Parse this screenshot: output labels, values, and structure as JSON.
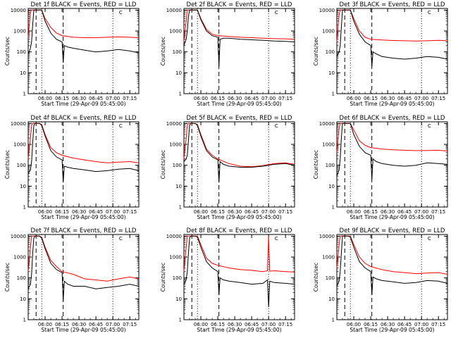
{
  "chart_data": {
    "type": "line",
    "panel_titles": [
      "Det 1f BLACK = Events, RED = LLD",
      "Det 2f BLACK = Events, RED = LLD",
      "Det 3f BLACK = Events, RED = LLD",
      "Det 4f BLACK = Events, RED = LLD",
      "Det 5f BLACK = Events, RED = LLD",
      "Det 6f BLACK = Events, RED = LLD",
      "Det 7f BLACK = Events, RED = LLD",
      "Det 8f BLACK = Events, RED = LLD",
      "Det 9f BLACK = Events, RED = LLD"
    ],
    "xlabel": "Start Time (29-Apr-09 05:45:00)",
    "ylabel": "Counts/sec",
    "x_tick_labels": [
      "06:00",
      "06:15",
      "06:30",
      "06:45",
      "07:00",
      "07:15"
    ],
    "x_tick_minutes": [
      15,
      30,
      45,
      60,
      75,
      90
    ],
    "xlim_minutes": [
      0,
      98
    ],
    "y_tick_labels": [
      "1",
      "10",
      "100",
      "1000",
      "10000"
    ],
    "y_tick_values": [
      1,
      10,
      100,
      1000,
      10000
    ],
    "ylim": [
      1,
      12000
    ],
    "yscale": "log",
    "series_colors": {
      "events": "#000000",
      "lld": "#ff0000"
    },
    "marker_label": "C",
    "dashed_markers_minutes": [
      7,
      31
    ],
    "dotted_markers_minutes": [
      12,
      75
    ],
    "panels": [
      {
        "lld": {
          "x": [
            0,
            2,
            3,
            4,
            5,
            6,
            7,
            8,
            10,
            12,
            15,
            20,
            25,
            30,
            40,
            50,
            60,
            70,
            80,
            90,
            98
          ],
          "y": [
            500,
            8000,
            10000,
            10000,
            10000,
            10000,
            10000,
            10000,
            10000,
            10000,
            4000,
            1500,
            800,
            600,
            500,
            480,
            480,
            500,
            520,
            500,
            480
          ]
        },
        "events": {
          "x": [
            0,
            2,
            3,
            4,
            5,
            6,
            7,
            8,
            10,
            12,
            15,
            20,
            25,
            30,
            31,
            32,
            35,
            40,
            50,
            60,
            70,
            80,
            90,
            98
          ],
          "y": [
            80,
            150,
            300,
            2000,
            10000,
            10000,
            10000,
            10000,
            10000,
            10000,
            3000,
            800,
            400,
            300,
            30,
            200,
            170,
            150,
            120,
            100,
            110,
            130,
            110,
            90
          ]
        }
      },
      {
        "lld": {
          "x": [
            0,
            2,
            3,
            4,
            5,
            6,
            7,
            8,
            10,
            12,
            15,
            20,
            25,
            30,
            40,
            50,
            60,
            70,
            80,
            90,
            98
          ],
          "y": [
            300,
            3000,
            10000,
            10000,
            10000,
            10000,
            10000,
            10000,
            10000,
            10000,
            4000,
            1200,
            700,
            600,
            550,
            500,
            480,
            450,
            430,
            420,
            400
          ]
        },
        "events": {
          "x": [
            0,
            2,
            3,
            4,
            5,
            6,
            7,
            8,
            10,
            12,
            15,
            20,
            25,
            30,
            31,
            32,
            35,
            40,
            50,
            60,
            70,
            80,
            90,
            98
          ],
          "y": [
            200,
            400,
            1000,
            5000,
            10000,
            10000,
            10000,
            10000,
            10000,
            10000,
            3500,
            1000,
            600,
            500,
            20,
            400,
            450,
            450,
            400,
            380,
            360,
            330,
            320,
            300
          ]
        }
      },
      {
        "lld": {
          "x": [
            0,
            2,
            3,
            4,
            5,
            6,
            7,
            8,
            10,
            12,
            15,
            20,
            25,
            30,
            40,
            50,
            60,
            70,
            80,
            90,
            98
          ],
          "y": [
            300,
            6000,
            10000,
            10000,
            10000,
            10000,
            10000,
            10000,
            10000,
            10000,
            4000,
            1000,
            500,
            400,
            370,
            350,
            340,
            330,
            340,
            360,
            340
          ]
        },
        "events": {
          "x": [
            0,
            2,
            3,
            4,
            5,
            6,
            7,
            8,
            10,
            12,
            15,
            20,
            25,
            30,
            31,
            32,
            35,
            40,
            50,
            60,
            70,
            80,
            90,
            98
          ],
          "y": [
            60,
            100,
            200,
            1500,
            10000,
            10000,
            10000,
            10000,
            10000,
            10000,
            3000,
            700,
            300,
            200,
            20,
            100,
            80,
            60,
            50,
            45,
            50,
            60,
            55,
            45
          ]
        }
      },
      {
        "lld": {
          "x": [
            0,
            2,
            3,
            4,
            5,
            6,
            7,
            8,
            10,
            12,
            15,
            20,
            25,
            30,
            40,
            50,
            60,
            70,
            80,
            90,
            98
          ],
          "y": [
            200,
            2000,
            8000,
            10000,
            10000,
            10000,
            10000,
            10000,
            10000,
            9000,
            3000,
            700,
            400,
            300,
            220,
            180,
            150,
            130,
            140,
            150,
            130
          ]
        },
        "events": {
          "x": [
            0,
            2,
            3,
            4,
            5,
            6,
            7,
            8,
            10,
            12,
            15,
            20,
            25,
            30,
            31,
            32,
            35,
            40,
            50,
            60,
            70,
            80,
            90,
            98
          ],
          "y": [
            40,
            60,
            150,
            1200,
            8000,
            10000,
            10000,
            10000,
            10000,
            8000,
            2500,
            500,
            250,
            180,
            15,
            90,
            80,
            70,
            60,
            50,
            55,
            65,
            70,
            55
          ]
        }
      },
      {
        "lld": {
          "x": [
            0,
            2,
            3,
            4,
            5,
            6,
            7,
            8,
            10,
            12,
            15,
            20,
            25,
            30,
            40,
            50,
            60,
            70,
            80,
            90,
            98
          ],
          "y": [
            200,
            2000,
            8000,
            10000,
            10000,
            10000,
            10000,
            10000,
            10000,
            9000,
            3000,
            600,
            300,
            200,
            120,
            90,
            85,
            95,
            120,
            130,
            110
          ]
        },
        "events": {
          "x": [
            0,
            2,
            3,
            4,
            5,
            6,
            7,
            8,
            10,
            12,
            15,
            20,
            25,
            30,
            31,
            32,
            35,
            40,
            50,
            60,
            70,
            80,
            90,
            98
          ],
          "y": [
            150,
            200,
            300,
            1500,
            8000,
            10000,
            10000,
            10000,
            10000,
            8000,
            2500,
            500,
            250,
            180,
            15,
            150,
            110,
            90,
            80,
            80,
            90,
            110,
            120,
            100
          ]
        }
      },
      {
        "lld": {
          "x": [
            0,
            2,
            3,
            4,
            5,
            6,
            7,
            8,
            10,
            12,
            15,
            20,
            25,
            30,
            40,
            50,
            60,
            70,
            80,
            90,
            98
          ],
          "y": [
            400,
            6000,
            10000,
            10000,
            10000,
            10000,
            10000,
            10000,
            10000,
            10000,
            5000,
            1500,
            900,
            700,
            600,
            550,
            520,
            500,
            510,
            520,
            480
          ]
        },
        "events": {
          "x": [
            0,
            2,
            3,
            4,
            5,
            6,
            7,
            8,
            10,
            12,
            15,
            20,
            25,
            30,
            31,
            32,
            35,
            40,
            50,
            60,
            70,
            80,
            90,
            98
          ],
          "y": [
            30,
            60,
            200,
            2000,
            10000,
            10000,
            10000,
            10000,
            10000,
            10000,
            3000,
            800,
            400,
            300,
            20,
            200,
            150,
            120,
            100,
            90,
            100,
            130,
            120,
            110
          ]
        }
      },
      {
        "lld": {
          "x": [
            0,
            2,
            3,
            4,
            5,
            6,
            7,
            8,
            10,
            12,
            15,
            20,
            25,
            30,
            40,
            50,
            60,
            70,
            80,
            90,
            98
          ],
          "y": [
            200,
            3000,
            10000,
            10000,
            10000,
            10000,
            10000,
            10000,
            10000,
            9000,
            3000,
            700,
            350,
            200,
            150,
            90,
            80,
            70,
            90,
            110,
            90
          ]
        },
        "events": {
          "x": [
            0,
            2,
            3,
            4,
            5,
            6,
            7,
            8,
            10,
            12,
            15,
            20,
            25,
            30,
            31,
            32,
            35,
            40,
            50,
            60,
            70,
            80,
            90,
            98
          ],
          "y": [
            30,
            50,
            150,
            1500,
            8000,
            10000,
            10000,
            10000,
            10000,
            8000,
            2500,
            500,
            250,
            180,
            8,
            70,
            50,
            40,
            40,
            30,
            35,
            40,
            50,
            40
          ]
        }
      },
      {
        "lld": {
          "x": [
            0,
            2,
            3,
            4,
            5,
            6,
            7,
            8,
            10,
            12,
            15,
            20,
            25,
            30,
            40,
            50,
            60,
            70,
            74,
            75,
            76,
            80,
            90,
            98
          ],
          "y": [
            200,
            3000,
            10000,
            10000,
            10000,
            10000,
            10000,
            10000,
            10000,
            10000,
            4000,
            900,
            500,
            400,
            300,
            250,
            230,
            200,
            220,
            10000,
            210,
            220,
            200,
            190
          ]
        },
        "events": {
          "x": [
            0,
            2,
            3,
            4,
            5,
            6,
            7,
            8,
            10,
            12,
            15,
            20,
            25,
            30,
            31,
            32,
            35,
            40,
            50,
            60,
            70,
            74,
            75,
            76,
            80,
            90,
            98
          ],
          "y": [
            50,
            80,
            200,
            1500,
            8000,
            10000,
            10000,
            10000,
            10000,
            9000,
            3000,
            600,
            300,
            200,
            15,
            100,
            80,
            70,
            60,
            50,
            55,
            80,
            4,
            70,
            60,
            55,
            50
          ]
        }
      },
      {
        "lld": {
          "x": [
            0,
            2,
            3,
            4,
            5,
            6,
            7,
            8,
            10,
            12,
            15,
            20,
            25,
            30,
            40,
            50,
            60,
            70,
            80,
            90,
            98
          ],
          "y": [
            300,
            4000,
            10000,
            10000,
            10000,
            10000,
            10000,
            10000,
            10000,
            10000,
            4000,
            1000,
            500,
            350,
            250,
            200,
            180,
            160,
            170,
            180,
            150
          ]
        },
        "events": {
          "x": [
            0,
            2,
            3,
            4,
            5,
            6,
            7,
            8,
            10,
            12,
            15,
            20,
            25,
            30,
            31,
            32,
            35,
            40,
            50,
            60,
            70,
            80,
            90,
            98
          ],
          "y": [
            40,
            70,
            200,
            1500,
            10000,
            10000,
            10000,
            10000,
            10000,
            9000,
            3000,
            600,
            300,
            200,
            15,
            110,
            90,
            75,
            65,
            55,
            60,
            75,
            70,
            55
          ]
        }
      }
    ]
  }
}
